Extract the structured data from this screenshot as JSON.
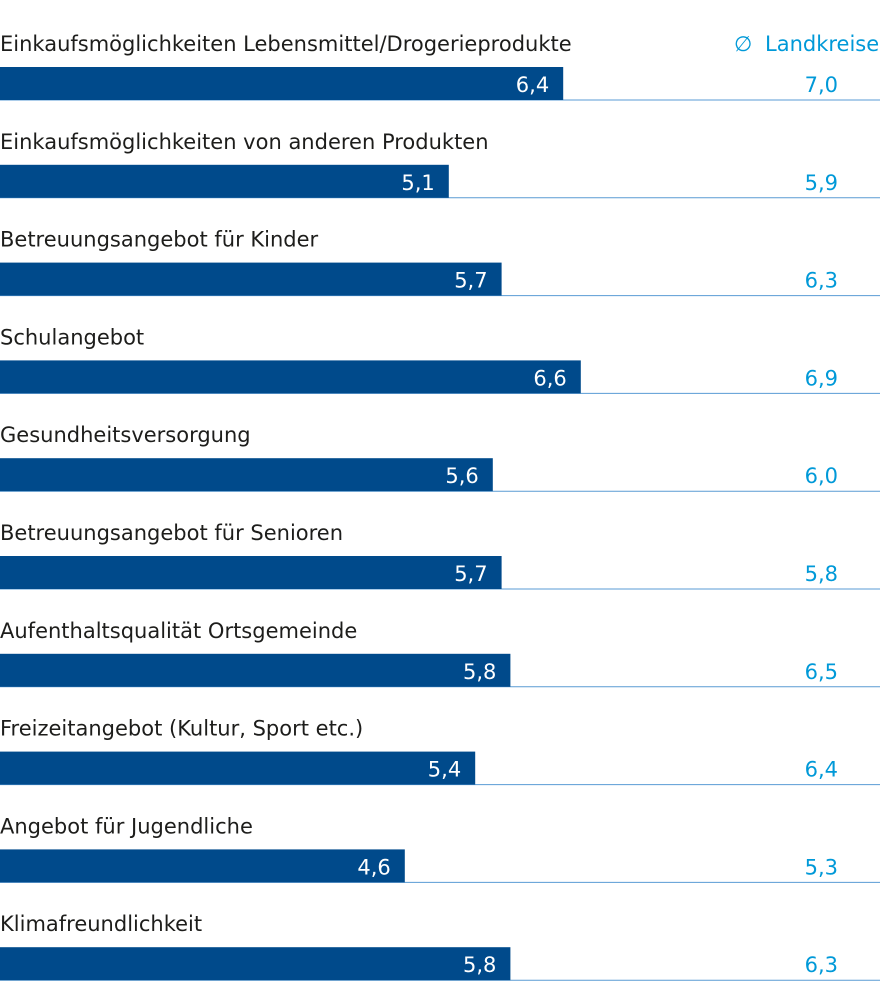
{
  "chart_data": {
    "type": "bar",
    "orientation": "horizontal",
    "categories": [
      "Einkaufsmöglichkeiten Lebensmittel/Drogerieprodukte",
      "Einkaufsmöglichkeiten von anderen Produkten",
      "Betreuungsangebot für Kinder",
      "Schulangebot",
      "Gesundheitsversorgung",
      "Betreuungsangebot für Senioren",
      "Aufenthaltsqualität Ortsgemeinde",
      "Freizeitangebot (Kultur, Sport etc.)",
      "Angebot für Jugendliche",
      "Klimafreundlichkeit"
    ],
    "values": [
      6.4,
      5.1,
      5.7,
      6.6,
      5.6,
      5.7,
      5.8,
      5.4,
      4.6,
      5.8
    ],
    "value_labels": [
      "6,4",
      "5,1",
      "5,7",
      "6,6",
      "5,6",
      "5,7",
      "5,8",
      "5,4",
      "4,6",
      "5,8"
    ],
    "reference": {
      "name": "Landkreise",
      "symbol": "∅",
      "values": [
        7.0,
        5.9,
        6.3,
        6.9,
        6.0,
        5.8,
        6.5,
        6.4,
        5.3,
        6.3
      ],
      "value_labels": [
        "7,0",
        "5,9",
        "6,3",
        "6,9",
        "6,0",
        "5,8",
        "6,5",
        "6,4",
        "5,3",
        "6,3"
      ]
    },
    "xlim": [
      0,
      10
    ],
    "grid": false,
    "legend_position": "top-right",
    "colors": {
      "bar": "#004a8b",
      "reference_text": "#0099d8",
      "baseline": "#5a9bd4",
      "label_text": "#1d1d1b",
      "bar_text": "#ffffff"
    }
  }
}
